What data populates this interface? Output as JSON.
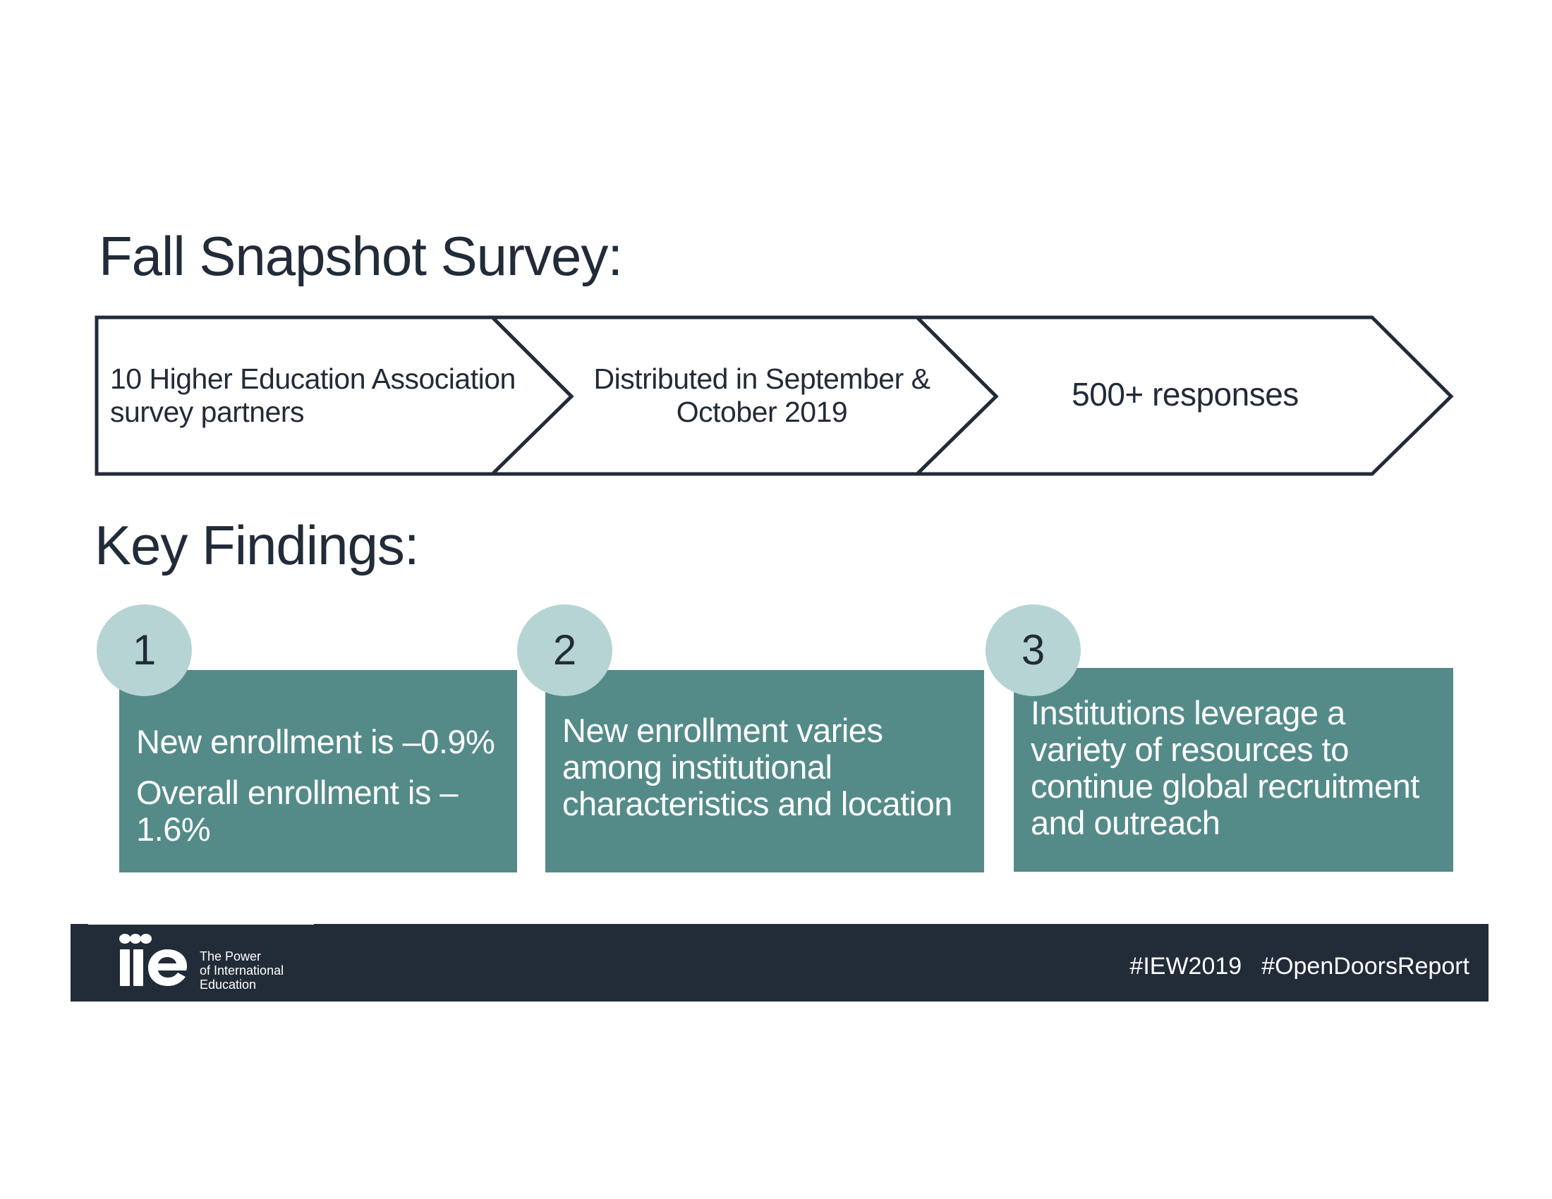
{
  "survey": {
    "title": "Fall Snapshot Survey:",
    "steps": [
      {
        "line1": "10 Higher Education Association",
        "line2": "survey partners"
      },
      {
        "line1": "Distributed in September &",
        "line2": "October 2019"
      },
      {
        "line1": "500+ responses"
      }
    ]
  },
  "findings": {
    "title": "Key Findings:",
    "items": [
      {
        "number": "1",
        "lines": [
          "New enrollment is –0.9%",
          "Overall enrollment is –1.6%"
        ]
      },
      {
        "number": "2",
        "text": "New enrollment varies among institutional characteristics and location"
      },
      {
        "number": "3",
        "text": "Institutions leverage a variety of resources to continue global recruitment and outreach"
      }
    ]
  },
  "footer": {
    "logo_text": "iie",
    "tagline": [
      "The Power",
      "of International",
      "Education"
    ],
    "hashtags": [
      "#IEW2019",
      "#OpenDoorsReport"
    ]
  },
  "colors": {
    "navy": "#222b38",
    "teal": "#548b89",
    "light_teal": "#b6d4d3"
  }
}
